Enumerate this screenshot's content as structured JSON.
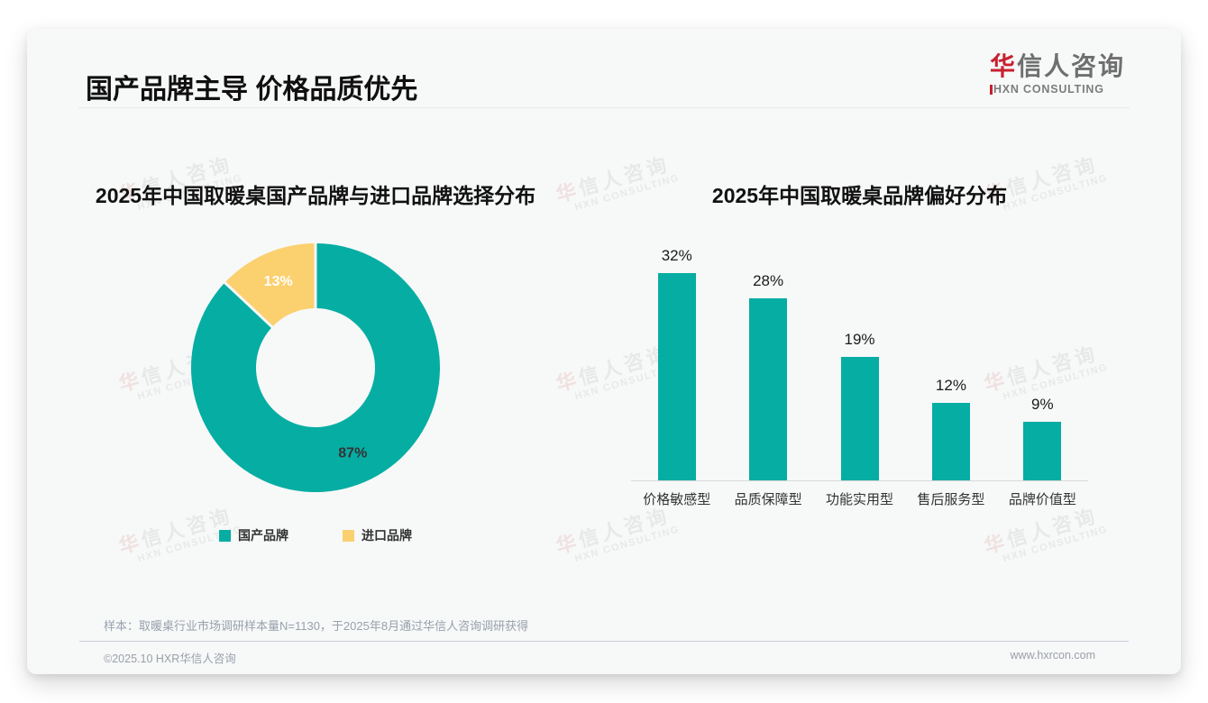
{
  "header": {
    "title": "国产品牌主导 价格品质优先",
    "logo": {
      "zh_first": "华",
      "zh_rest": "信人咨询",
      "en": "HXN CONSULTING"
    }
  },
  "watermark": {
    "zh_first": "华",
    "zh_rest": "信人咨询",
    "en": "HXN CONSULTING"
  },
  "colors": {
    "teal": "#06ada3",
    "yellow": "#fbd06e",
    "brand_red": "#c8202f",
    "axis": "#d9d9d9",
    "card_bg": "#f7f8f8"
  },
  "chart_data": [
    {
      "type": "pie",
      "donut": true,
      "title": "2025年中国取暖桌国产品牌与进口品牌选择分布",
      "legend_position": "bottom",
      "slices": [
        {
          "label": "国产品牌",
          "value": 87,
          "value_label": "87%",
          "color": "#06ada3",
          "label_color": "#333333"
        },
        {
          "label": "进口品牌",
          "value": 13,
          "value_label": "13%",
          "color": "#fbd06e",
          "label_color": "#ffffff"
        }
      ]
    },
    {
      "type": "bar",
      "title": "2025年中国取暖桌品牌偏好分布",
      "categories": [
        "价格敏感型",
        "品质保障型",
        "功能实用型",
        "售后服务型",
        "品牌价值型"
      ],
      "values": [
        32,
        28,
        19,
        12,
        9
      ],
      "value_labels": [
        "32%",
        "28%",
        "19%",
        "12%",
        "9%"
      ],
      "bar_color": "#06ada3",
      "ylim": [
        0,
        35
      ],
      "grid": false
    }
  ],
  "footer": {
    "note": "样本：取暖桌行业市场调研样本量N=1130，于2025年8月通过华信人咨询调研获得",
    "copyright": "©2025.10 HXR华信人咨询",
    "website": "www.hxrcon.com"
  }
}
